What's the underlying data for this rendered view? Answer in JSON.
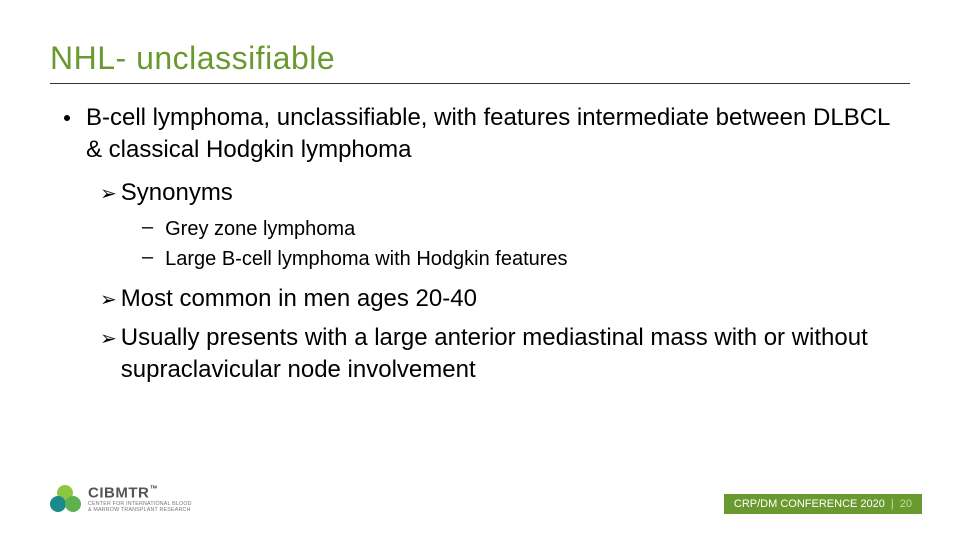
{
  "colors": {
    "title": "#6a9a2f",
    "rule": "#333333",
    "text": "#000000",
    "footer_bg": "#6a9a2f",
    "footer_text": "#ffffff",
    "page_num": "#c7dd9d",
    "logo_text": "#555555",
    "logo_c1": "#8dc63f",
    "logo_c2": "#1a8a8a",
    "logo_c3": "#5fb04e"
  },
  "title": "NHL- unclassifiable",
  "main_bullet": "B-cell lymphoma, unclassifiable, with features intermediate between DLBCL & classical Hodgkin lymphoma",
  "arrows": [
    {
      "label": "Synonyms",
      "dashes": [
        "Grey zone lymphoma",
        "Large B-cell lymphoma with Hodgkin features"
      ]
    },
    {
      "label": "Most common in men ages  20-40",
      "dashes": []
    },
    {
      "label": "Usually presents with a large anterior mediastinal mass with or without supraclavicular node involvement",
      "dashes": []
    }
  ],
  "logo": {
    "brand": "CIBMTR",
    "tm": "™",
    "tagline1": "CENTER FOR INTERNATIONAL BLOOD",
    "tagline2": "& MARROW TRANSPLANT RESEARCH"
  },
  "footer": {
    "conference": "CRP/DM CONFERENCE 2020",
    "separator": "|",
    "page": "20"
  }
}
